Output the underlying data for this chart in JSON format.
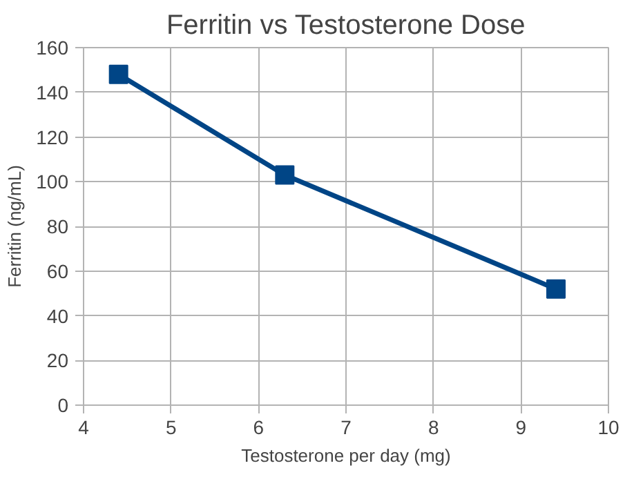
{
  "chart_data": {
    "type": "line",
    "title": "Ferritin vs Testosterone Dose",
    "xlabel": "Testosterone per day (mg)",
    "ylabel": "Ferritin (ng/mL)",
    "x": [
      4.4,
      6.3,
      9.4
    ],
    "series": [
      {
        "color": "#004586",
        "values": [
          148,
          103,
          52
        ]
      }
    ],
    "xlim": [
      4,
      10
    ],
    "xticks": [
      4,
      5,
      6,
      7,
      8,
      9,
      10
    ],
    "ylim": [
      0,
      160
    ],
    "yticks": [
      0,
      20,
      40,
      60,
      80,
      100,
      120,
      140,
      160
    ],
    "grid": true,
    "marker": "square",
    "line_style": "solid"
  }
}
